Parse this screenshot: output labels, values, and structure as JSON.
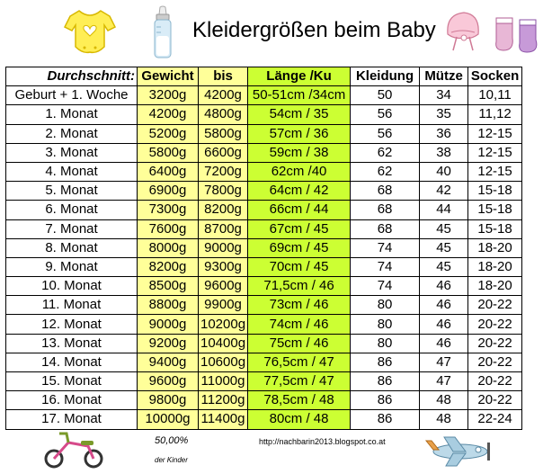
{
  "title": "Kleidergrößen beim Baby",
  "headers": {
    "durchschnitt": "Durchschnitt:",
    "gewicht": "Gewicht",
    "bis": "bis",
    "laenge": "Länge /Ku",
    "kleidung": "Kleidung",
    "muetze": "Mütze",
    "socken": "Socken"
  },
  "rows": [
    {
      "label": "Geburt + 1. Woche",
      "gewicht": "3200g",
      "bis": "4200g",
      "laenge": "50-51cm /34cm",
      "kleidung": "50",
      "muetze": "34",
      "socken": "10,11"
    },
    {
      "label": "1. Monat",
      "gewicht": "4200g",
      "bis": "4800g",
      "laenge": "54cm / 35",
      "kleidung": "56",
      "muetze": "35",
      "socken": "11,12"
    },
    {
      "label": "2. Monat",
      "gewicht": "5200g",
      "bis": "5800g",
      "laenge": "57cm / 36",
      "kleidung": "56",
      "muetze": "36",
      "socken": "12-15"
    },
    {
      "label": "3. Monat",
      "gewicht": "5800g",
      "bis": "6600g",
      "laenge": "59cm / 38",
      "kleidung": "62",
      "muetze": "38",
      "socken": "12-15"
    },
    {
      "label": "4. Monat",
      "gewicht": "6400g",
      "bis": "7200g",
      "laenge": "62cm /40",
      "kleidung": "62",
      "muetze": "40",
      "socken": "12-15"
    },
    {
      "label": "5. Monat",
      "gewicht": "6900g",
      "bis": "7800g",
      "laenge": "64cm / 42",
      "kleidung": "68",
      "muetze": "42",
      "socken": "15-18"
    },
    {
      "label": "6. Monat",
      "gewicht": "7300g",
      "bis": "8200g",
      "laenge": "66cm / 44",
      "kleidung": "68",
      "muetze": "44",
      "socken": "15-18"
    },
    {
      "label": "7. Monat",
      "gewicht": "7600g",
      "bis": "8700g",
      "laenge": "67cm / 45",
      "kleidung": "68",
      "muetze": "45",
      "socken": "15-18"
    },
    {
      "label": "8. Monat",
      "gewicht": "8000g",
      "bis": "9000g",
      "laenge": "69cm / 45",
      "kleidung": "74",
      "muetze": "45",
      "socken": "18-20"
    },
    {
      "label": "9. Monat",
      "gewicht": "8200g",
      "bis": "9300g",
      "laenge": "70cm / 45",
      "kleidung": "74",
      "muetze": "45",
      "socken": "18-20"
    },
    {
      "label": "10. Monat",
      "gewicht": "8500g",
      "bis": "9600g",
      "laenge": "71,5cm / 46",
      "kleidung": "74",
      "muetze": "46",
      "socken": "18-20"
    },
    {
      "label": "11. Monat",
      "gewicht": "8800g",
      "bis": "9900g",
      "laenge": "73cm / 46",
      "kleidung": "80",
      "muetze": "46",
      "socken": "20-22"
    },
    {
      "label": "12. Monat",
      "gewicht": "9000g",
      "bis": "10200g",
      "laenge": "74cm / 46",
      "kleidung": "80",
      "muetze": "46",
      "socken": "20-22",
      "bold": true
    },
    {
      "label": "13. Monat",
      "gewicht": "9200g",
      "bis": "10400g",
      "laenge": "75cm / 46",
      "kleidung": "80",
      "muetze": "46",
      "socken": "20-22"
    },
    {
      "label": "14. Monat",
      "gewicht": "9400g",
      "bis": "10600g",
      "laenge": "76,5cm / 47",
      "kleidung": "86",
      "muetze": "47",
      "socken": "20-22"
    },
    {
      "label": "15. Monat",
      "gewicht": "9600g",
      "bis": "11000g",
      "laenge": "77,5cm / 47",
      "kleidung": "86",
      "muetze": "47",
      "socken": "20-22"
    },
    {
      "label": "16. Monat",
      "gewicht": "9800g",
      "bis": "11200g",
      "laenge": "78,5cm / 48",
      "kleidung": "86",
      "muetze": "48",
      "socken": "20-22"
    },
    {
      "label": "17. Monat",
      "gewicht": "10000g",
      "bis": "11400g",
      "laenge": "80cm / 48",
      "kleidung": "86",
      "muetze": "48",
      "socken": "22-24"
    }
  ],
  "footer": {
    "percent": "50,00%",
    "kinder": "der Kinder",
    "url": "http://nachbarin2013.blogspot.co.at"
  },
  "colors": {
    "yellow": "#ffff99",
    "green": "#ccff33"
  },
  "icons": [
    "onesie-icon",
    "baby-bottle-icon",
    "bonnet-icon",
    "baby-socks-icon",
    "tricycle-icon",
    "airplane-icon"
  ]
}
